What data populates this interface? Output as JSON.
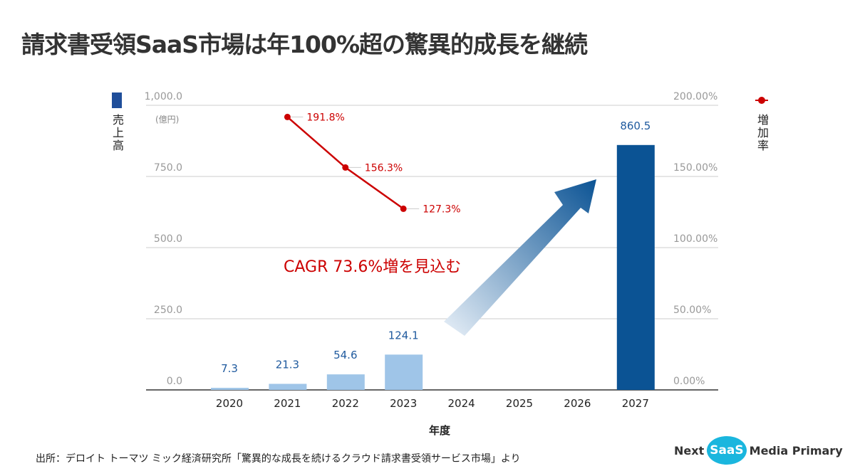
{
  "title": "請求書受領SaaS市場は年100%超の驚異的成長を継続",
  "source": "出所：デロイト トーマツ ミック経済研究所「驚異的な成長を続けるクラウド請求書受領サービス市場」より",
  "logo": {
    "left": "Next",
    "mid": "SaaS",
    "right": "Media Primary"
  },
  "chart_data": {
    "type": "bar+line",
    "categories": [
      "2020",
      "2021",
      "2022",
      "2023",
      "2024",
      "2025",
      "2026",
      "2027"
    ],
    "xlabel": "年度",
    "left_axis": {
      "label": "売上高",
      "unit": "(億円)",
      "ylim": [
        0,
        1000
      ],
      "ticks": [
        "0.0",
        "250.0",
        "500.0",
        "750.0",
        "1,000.0"
      ]
    },
    "right_axis": {
      "label": "増加率",
      "ylim": [
        0,
        200
      ],
      "ticks": [
        "0.00%",
        "50.00%",
        "100.00%",
        "150.00%",
        "200.00%"
      ]
    },
    "series": [
      {
        "type": "bar",
        "values": [
          7.3,
          21.3,
          54.6,
          124.1,
          null,
          null,
          null,
          860.5
        ],
        "labels": [
          "7.3",
          "21.3",
          "54.6",
          "124.1",
          "",
          "",
          "",
          "860.5"
        ],
        "colors": [
          "#9fc5e8",
          "#9fc5e8",
          "#9fc5e8",
          "#9fc5e8",
          "",
          "",
          "",
          "#0b5394"
        ]
      },
      {
        "type": "line",
        "x": [
          "2021",
          "2022",
          "2023"
        ],
        "values": [
          191.8,
          156.3,
          127.3
        ],
        "labels": [
          "191.8%",
          "156.3%",
          "127.3%"
        ],
        "color": "#cc0000"
      }
    ],
    "annotation": "CAGR 73.6%増を見込む",
    "grid": true
  }
}
